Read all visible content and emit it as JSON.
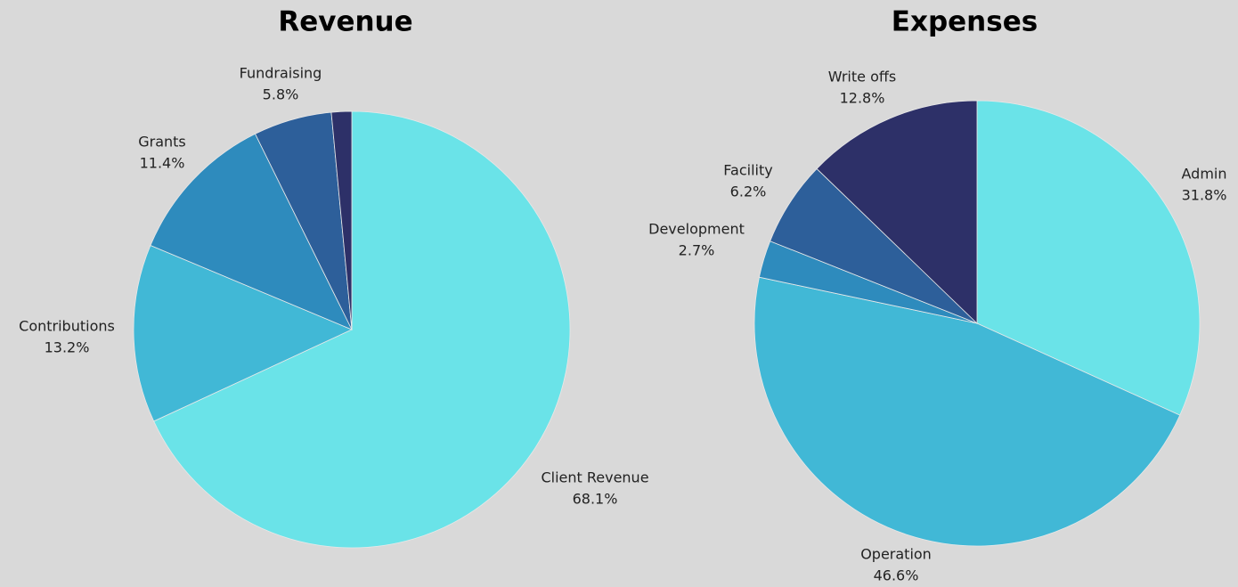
{
  "chart_data": [
    {
      "type": "pie",
      "title": "Revenue",
      "categories": [
        "Client Revenue",
        "Contributions",
        "Grants",
        "Fundraising",
        null
      ],
      "values": [
        68.1,
        13.2,
        11.4,
        5.8,
        1.5
      ],
      "value_labels": [
        "68.1%",
        "13.2%",
        "11.4%",
        "5.8%",
        null
      ],
      "colors": [
        "#6ae3e8",
        "#41b8d6",
        "#2e8bbd",
        "#2d5f9a",
        "#2d3068"
      ]
    },
    {
      "type": "pie",
      "title": "Expenses",
      "categories": [
        "Admin",
        "Operation",
        "Development",
        "Facility",
        "Write offs"
      ],
      "values": [
        31.8,
        46.6,
        2.7,
        6.2,
        12.8
      ],
      "value_labels": [
        "31.8%",
        "46.6%",
        "2.7%",
        "6.2%",
        "12.8%"
      ],
      "colors": [
        "#6ae3e8",
        "#41b8d6",
        "#2e8bbd",
        "#2d5f9a",
        "#2d3068"
      ]
    }
  ]
}
